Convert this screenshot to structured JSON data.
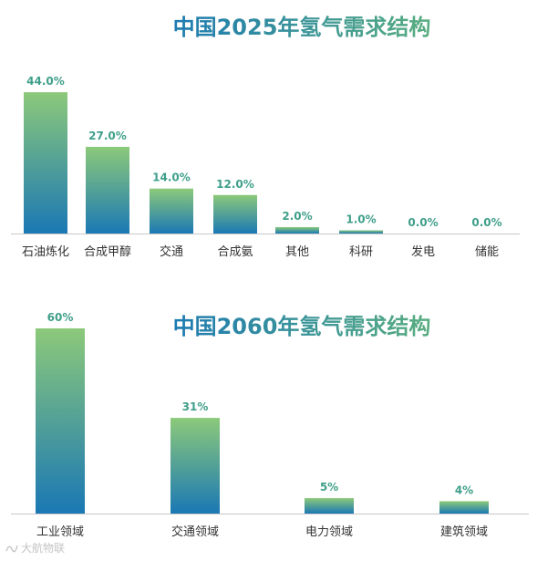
{
  "watermark": "大航物联",
  "colors": {
    "bar_top": "#8cc97a",
    "bar_bottom": "#1a78b4",
    "title_left": "#1a78b4",
    "title_right": "#5cb07e",
    "value_label": "#3f9f8a",
    "tick_label": "#333333",
    "axis": "#c8c8c8"
  },
  "chart_data": [
    {
      "type": "bar",
      "title": "中国2025年氢气需求结构",
      "categories": [
        "石油炼化",
        "合成甲醇",
        "交通",
        "合成氨",
        "其他",
        "科研",
        "发电",
        "储能"
      ],
      "values": [
        44.0,
        27.0,
        14.0,
        12.0,
        2.0,
        1.0,
        0.0,
        0.0
      ],
      "value_labels": [
        "44.0%",
        "27.0%",
        "14.0%",
        "12.0%",
        "2.0%",
        "1.0%",
        "0.0%",
        "0.0%"
      ],
      "ylim": [
        0,
        50
      ],
      "grid": false,
      "legend": "none"
    },
    {
      "type": "bar",
      "title": "中国2060年氢气需求结构",
      "categories": [
        "工业领域",
        "交通领域",
        "电力领域",
        "建筑领域"
      ],
      "values": [
        60,
        31,
        5,
        4
      ],
      "value_labels": [
        "60%",
        "31%",
        "5%",
        "4%"
      ],
      "ylim": [
        0,
        60
      ],
      "grid": false,
      "legend": "none"
    }
  ]
}
